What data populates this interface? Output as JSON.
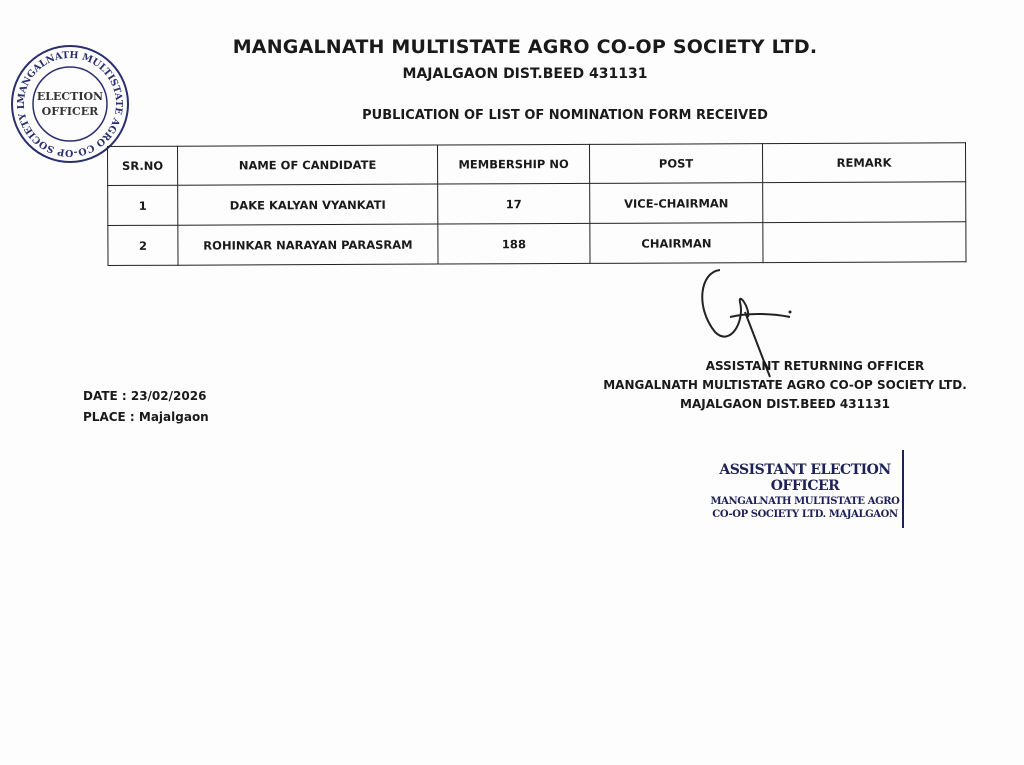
{
  "header": {
    "title": "MANGALNATH MULTISTATE AGRO CO-OP SOCIETY LTD.",
    "address": "MAJALGAON DIST.BEED 431131",
    "subtitle": "PUBLICATION OF LIST OF NOMINATION FORM RECEIVED"
  },
  "stamp": {
    "ring_text": "MANGALNATH MULTISTATE AGRO CO-OP SOCIETY LTD. MAJALGAON ★",
    "center_line1": "ELECTION",
    "center_line2": "OFFICER",
    "color": "#2a2f6e"
  },
  "table": {
    "headers": [
      "SR.NO",
      "NAME OF CANDIDATE",
      "MEMBERSHIP NO",
      "POST",
      "REMARK"
    ],
    "rows": [
      {
        "sr": "1",
        "name": "DAKE KALYAN VYANKATI",
        "membership": "17",
        "post": "VICE-CHAIRMAN",
        "remark": ""
      },
      {
        "sr": "2",
        "name": "ROHINKAR NARAYAN PARASRAM",
        "membership": "188",
        "post": "CHAIRMAN",
        "remark": ""
      }
    ]
  },
  "footer": {
    "date": "DATE : 23/02/2026",
    "place": "PLACE : Majalgaon",
    "officer_title": "ASSISTANT RETURNING OFFICER",
    "officer_org": "MANGALNATH MULTISTATE AGRO CO-OP SOCIETY LTD.",
    "officer_addr": "MAJALGAON DIST.BEED 431131"
  },
  "seal": {
    "line1": "ASSISTANT ELECTION OFFICER",
    "line2": "MANGALNATH MULTISTATE AGRO",
    "line3": "CO-OP SOCIETY LTD. MAJALGAON",
    "color": "#1d2158"
  }
}
